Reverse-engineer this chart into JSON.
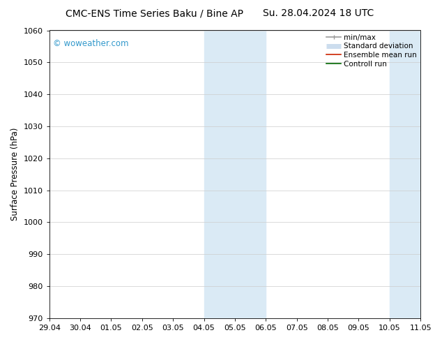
{
  "title_left": "CMC-ENS Time Series Baku / Bine AP",
  "title_right": "Su. 28.04.2024 18 UTC",
  "ylabel": "Surface Pressure (hPa)",
  "ylim": [
    970,
    1060
  ],
  "yticks": [
    970,
    980,
    990,
    1000,
    1010,
    1020,
    1030,
    1040,
    1050,
    1060
  ],
  "xtick_labels": [
    "29.04",
    "30.04",
    "01.05",
    "02.05",
    "03.05",
    "04.05",
    "05.05",
    "06.05",
    "07.05",
    "08.05",
    "09.05",
    "10.05",
    "11.05"
  ],
  "bg_color": "#ffffff",
  "plot_bg_color": "#ffffff",
  "shaded_bands": [
    {
      "xstart": 5.0,
      "xend": 7.0,
      "color": "#daeaf5"
    },
    {
      "xstart": 11.0,
      "xend": 13.0,
      "color": "#daeaf5"
    }
  ],
  "watermark_text": "© woweather.com",
  "watermark_color": "#3399cc",
  "legend_items": [
    {
      "label": "min/max",
      "color": "#999999",
      "lw": 1.2,
      "style": "solid"
    },
    {
      "label": "Standard deviation",
      "color": "#ccddee",
      "lw": 5,
      "style": "solid"
    },
    {
      "label": "Ensemble mean run",
      "color": "#cc2200",
      "lw": 1.2,
      "style": "solid"
    },
    {
      "label": "Controll run",
      "color": "#006600",
      "lw": 1.2,
      "style": "solid"
    }
  ],
  "title_fontsize": 10,
  "tick_fontsize": 8,
  "legend_fontsize": 7.5,
  "ylabel_fontsize": 8.5
}
